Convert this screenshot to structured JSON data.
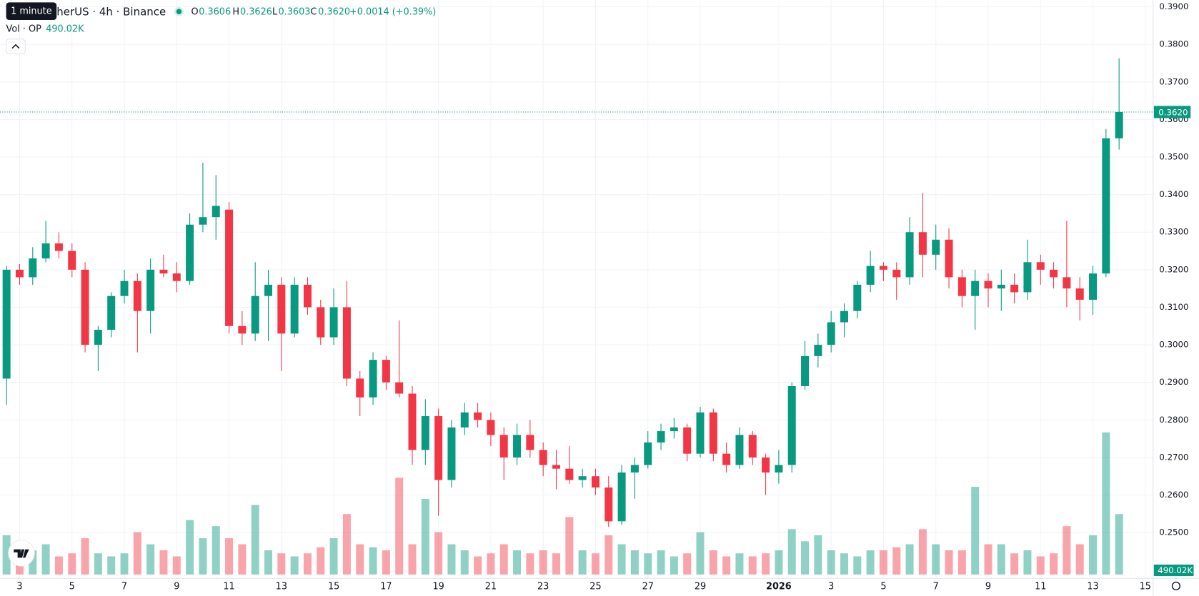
{
  "header": {
    "symbol": "etherUS · 4h · Binance",
    "tooltip": "1 minute",
    "open_label": "O",
    "open": "0.3606",
    "high_label": "H",
    "high": "0.3626",
    "low_label": "L",
    "low": "0.3603",
    "close_label": "C",
    "close": "0.3620",
    "change": "+0.0014 (+0.39%)",
    "volume_label": "Vol · OP",
    "volume": "490.02K"
  },
  "chart_data": {
    "type": "candlestick",
    "up_color": "#089981",
    "down_color": "#f23645",
    "grid": true,
    "x": [
      0,
      1,
      2,
      3,
      4,
      5,
      6,
      7,
      8,
      9,
      10,
      11,
      12,
      13,
      14,
      15,
      16,
      17,
      18,
      19,
      20,
      21,
      22,
      23,
      24,
      25,
      26,
      27,
      28,
      29,
      30,
      31,
      32,
      33,
      34,
      35,
      36,
      37,
      38,
      39,
      40,
      41,
      42,
      43,
      44,
      45,
      46,
      47,
      48,
      49,
      50,
      51,
      52,
      53,
      54,
      55,
      56,
      57,
      58,
      59,
      60,
      61,
      62,
      63,
      64,
      65,
      66,
      67,
      68,
      69,
      70,
      71,
      72,
      73,
      74,
      75,
      76,
      77,
      78,
      79,
      80,
      81,
      82,
      83,
      84,
      85
    ],
    "open": [
      0.291,
      0.32,
      0.318,
      0.323,
      0.327,
      0.325,
      0.32,
      0.3,
      0.304,
      0.313,
      0.317,
      0.309,
      0.32,
      0.319,
      0.317,
      0.332,
      0.334,
      0.336,
      0.305,
      0.303,
      0.313,
      0.316,
      0.303,
      0.316,
      0.31,
      0.302,
      0.31,
      0.291,
      0.286,
      0.296,
      0.29,
      0.287,
      0.272,
      0.281,
      0.264,
      0.278,
      0.282,
      0.28,
      0.276,
      0.27,
      0.276,
      0.272,
      0.268,
      0.267,
      0.264,
      0.265,
      0.262,
      0.253,
      0.266,
      0.268,
      0.274,
      0.277,
      0.278,
      0.271,
      0.282,
      0.271,
      0.268,
      0.276,
      0.27,
      0.266,
      0.268,
      0.289,
      0.297,
      0.3,
      0.306,
      0.309,
      0.316,
      0.321,
      0.32,
      0.318,
      0.33,
      0.324,
      0.328,
      0.318,
      0.313,
      0.317,
      0.315,
      0.316,
      0.314,
      0.322,
      0.32,
      0.318,
      0.315,
      0.312,
      0.319,
      0.355
    ],
    "high": [
      0.321,
      0.3215,
      0.326,
      0.333,
      0.33,
      0.327,
      0.322,
      0.305,
      0.314,
      0.32,
      0.319,
      0.323,
      0.324,
      0.322,
      0.335,
      0.3485,
      0.3452,
      0.338,
      0.309,
      0.322,
      0.32,
      0.318,
      0.318,
      0.318,
      0.312,
      0.315,
      0.317,
      0.293,
      0.298,
      0.297,
      0.3065,
      0.289,
      0.2855,
      0.283,
      0.28,
      0.2845,
      0.2845,
      0.282,
      0.278,
      0.279,
      0.28,
      0.274,
      0.272,
      0.273,
      0.267,
      0.267,
      0.265,
      0.268,
      0.27,
      0.277,
      0.279,
      0.2805,
      0.279,
      0.2835,
      0.283,
      0.274,
      0.278,
      0.277,
      0.271,
      0.272,
      0.29,
      0.301,
      0.303,
      0.309,
      0.311,
      0.317,
      0.325,
      0.322,
      0.322,
      0.334,
      0.3405,
      0.332,
      0.331,
      0.32,
      0.32,
      0.319,
      0.32,
      0.319,
      0.328,
      0.324,
      0.322,
      0.333,
      0.318,
      0.321,
      0.3575,
      0.3763
    ],
    "low": [
      0.284,
      0.316,
      0.316,
      0.322,
      0.323,
      0.318,
      0.298,
      0.293,
      0.302,
      0.311,
      0.298,
      0.303,
      0.318,
      0.314,
      0.316,
      0.33,
      0.328,
      0.303,
      0.3,
      0.301,
      0.301,
      0.293,
      0.302,
      0.308,
      0.3,
      0.3,
      0.289,
      0.281,
      0.284,
      0.288,
      0.286,
      0.268,
      0.268,
      0.2545,
      0.262,
      0.276,
      0.278,
      0.273,
      0.264,
      0.268,
      0.27,
      0.265,
      0.2615,
      0.263,
      0.262,
      0.26,
      0.2515,
      0.252,
      0.259,
      0.267,
      0.272,
      0.275,
      0.269,
      0.27,
      0.269,
      0.266,
      0.267,
      0.268,
      0.26,
      0.263,
      0.266,
      0.288,
      0.294,
      0.298,
      0.302,
      0.307,
      0.314,
      0.317,
      0.312,
      0.316,
      0.318,
      0.32,
      0.315,
      0.31,
      0.304,
      0.31,
      0.309,
      0.311,
      0.312,
      0.316,
      0.315,
      0.31,
      0.3065,
      0.308,
      0.318,
      0.352
    ],
    "close": [
      0.32,
      0.318,
      0.323,
      0.327,
      0.325,
      0.32,
      0.3,
      0.304,
      0.313,
      0.317,
      0.309,
      0.32,
      0.319,
      0.317,
      0.332,
      0.334,
      0.337,
      0.305,
      0.303,
      0.313,
      0.316,
      0.303,
      0.316,
      0.31,
      0.302,
      0.31,
      0.291,
      0.286,
      0.296,
      0.29,
      0.287,
      0.272,
      0.281,
      0.264,
      0.278,
      0.282,
      0.28,
      0.276,
      0.27,
      0.276,
      0.272,
      0.268,
      0.267,
      0.264,
      0.265,
      0.262,
      0.253,
      0.266,
      0.268,
      0.274,
      0.277,
      0.278,
      0.271,
      0.282,
      0.271,
      0.268,
      0.276,
      0.27,
      0.266,
      0.268,
      0.289,
      0.297,
      0.3,
      0.306,
      0.309,
      0.316,
      0.321,
      0.32,
      0.318,
      0.33,
      0.324,
      0.328,
      0.318,
      0.313,
      0.317,
      0.315,
      0.316,
      0.314,
      0.322,
      0.32,
      0.318,
      0.315,
      0.312,
      0.319,
      0.355,
      0.362
    ],
    "volume": [
      6.5,
      3.5,
      4,
      5,
      3,
      3.5,
      6,
      3.5,
      3,
      3.5,
      7,
      5,
      4,
      3,
      9,
      6,
      8,
      6,
      5,
      11.5,
      4,
      3.5,
      3,
      3.5,
      4.5,
      6,
      10,
      5,
      4.5,
      4,
      16,
      5,
      12.5,
      7,
      5,
      4,
      3,
      3.5,
      5,
      4,
      3.5,
      4,
      3.5,
      9.5,
      4,
      3.5,
      6.5,
      5,
      4,
      3.5,
      4,
      3,
      3.5,
      7,
      4,
      3,
      3.5,
      3,
      3.5,
      4,
      7.5,
      5.5,
      6.5,
      4,
      3.5,
      3,
      4,
      4,
      4.5,
      5,
      7.5,
      5,
      4,
      4,
      14.5,
      5,
      5,
      3.5,
      4,
      3,
      3.5,
      8,
      5,
      6.5,
      23.5,
      10
    ],
    "volume_lim": [
      0,
      24
    ],
    "last_price_label": "0.3620",
    "xlim": [
      -0.5,
      87.6
    ],
    "xticks": [
      {
        "value": 1,
        "label": "3"
      },
      {
        "value": 5,
        "label": "5"
      },
      {
        "value": 9,
        "label": "7"
      },
      {
        "value": 13,
        "label": "9"
      },
      {
        "value": 17,
        "label": "11"
      },
      {
        "value": 21,
        "label": "13"
      },
      {
        "value": 25,
        "label": "15"
      },
      {
        "value": 29,
        "label": "17"
      },
      {
        "value": 33,
        "label": "19"
      },
      {
        "value": 37,
        "label": "21"
      },
      {
        "value": 41,
        "label": "23"
      },
      {
        "value": 45,
        "label": "25"
      },
      {
        "value": 49,
        "label": "27"
      },
      {
        "value": 53,
        "label": "29"
      },
      {
        "value": 59,
        "label": "2026"
      },
      {
        "value": 63,
        "label": "3"
      },
      {
        "value": 67,
        "label": "5"
      },
      {
        "value": 71,
        "label": "7"
      },
      {
        "value": 75,
        "label": "9"
      },
      {
        "value": 79,
        "label": "11"
      },
      {
        "value": 83,
        "label": "13"
      },
      {
        "value": 87,
        "label": "15"
      }
    ],
    "ylim": [
      0.2372,
      0.3918
    ],
    "yticks": [
      {
        "value": 0.39,
        "label": "0.3900"
      },
      {
        "value": 0.38,
        "label": "0.3800"
      },
      {
        "value": 0.37,
        "label": "0.3700"
      },
      {
        "value": 0.36,
        "label": "0.3600"
      },
      {
        "value": 0.35,
        "label": "0.3500"
      },
      {
        "value": 0.34,
        "label": "0.3400"
      },
      {
        "value": 0.33,
        "label": "0.3300"
      },
      {
        "value": 0.32,
        "label": "0.3200"
      },
      {
        "value": 0.31,
        "label": "0.3100"
      },
      {
        "value": 0.3,
        "label": "0.3000"
      },
      {
        "value": 0.29,
        "label": "0.2900"
      },
      {
        "value": 0.28,
        "label": "0.2800"
      },
      {
        "value": 0.27,
        "label": "0.2700"
      },
      {
        "value": 0.26,
        "label": "0.2600"
      },
      {
        "value": 0.25,
        "label": "0.2500"
      }
    ]
  }
}
